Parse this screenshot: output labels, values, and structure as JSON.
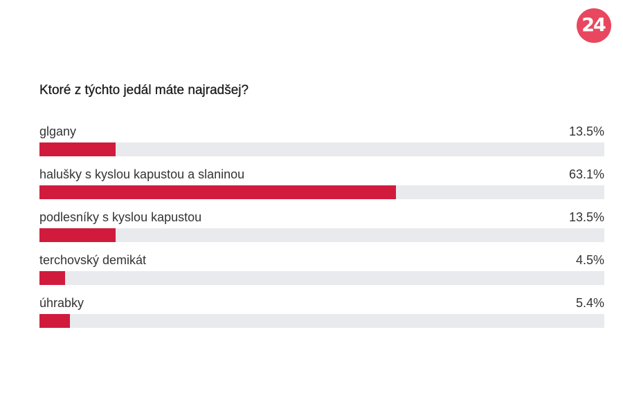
{
  "logo": {
    "text": "24",
    "color": "#e8475f"
  },
  "poll": {
    "question": "Ktoré z týchto jedál máte najradšej?",
    "bar_color": "#d01b3d",
    "track_color": "#e9eaed",
    "options": [
      {
        "label": "glgany",
        "percent_label": "13.5%",
        "percent": 13.5
      },
      {
        "label": "halušky s kyslou kapustou a slaninou",
        "percent_label": "63.1%",
        "percent": 63.1
      },
      {
        "label": "podlesníky s kyslou kapustou",
        "percent_label": "13.5%",
        "percent": 13.5
      },
      {
        "label": "terchovský demikát",
        "percent_label": "4.5%",
        "percent": 4.5
      },
      {
        "label": "úhrabky",
        "percent_label": "5.4%",
        "percent": 5.4
      }
    ]
  }
}
